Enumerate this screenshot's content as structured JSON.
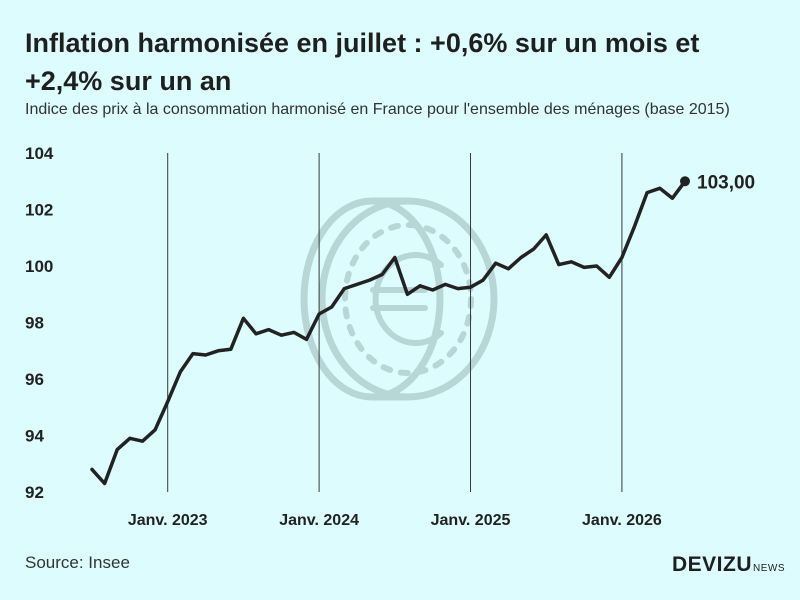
{
  "title": "Inflation harmonisée en juillet : +0,6% sur un mois et +2,4% sur un an",
  "subtitle": "Indice des prix à la consommation harmonisé en France pour l'ensemble des ménages (base 2015)",
  "source": "Source: Insee",
  "brand": {
    "name": "DEVIZU",
    "suffix": "NEWS"
  },
  "colors": {
    "background": "#dcfcfd",
    "line": "#222222",
    "watermark": "#b9d6d7"
  },
  "watermark_icon": "euro-coin-icon",
  "chart_data": {
    "type": "line",
    "title": "Inflation harmonisée en juillet : +0,6% sur un mois et +2,4% sur un an",
    "ylim": [
      92,
      104
    ],
    "yticks": [
      "92",
      "94",
      "96",
      "98",
      "100",
      "102",
      "104"
    ],
    "yticks_values": [
      92,
      94,
      96,
      98,
      100,
      102,
      104
    ],
    "xlim": [
      -3.8,
      45.5
    ],
    "xticks": [
      {
        "label": "Janv. 2023",
        "index": 6
      },
      {
        "label": "Janv. 2024",
        "index": 18
      },
      {
        "label": "Janv. 2025",
        "index": 30
      },
      {
        "label": "Janv. 2026",
        "index": 42
      }
    ],
    "grid": "vertical lines at January",
    "series": [
      {
        "values": [
          92.8,
          92.3,
          93.5,
          93.9,
          93.8,
          94.2,
          95.2,
          96.25,
          96.9,
          96.85,
          97.0,
          97.05,
          98.15,
          97.6,
          97.75,
          97.55,
          97.65,
          97.4,
          98.3,
          98.55,
          99.2,
          99.35,
          99.5,
          99.7,
          100.3,
          99.0,
          99.3,
          99.15,
          99.35,
          99.2,
          99.25,
          99.5,
          100.1,
          99.9,
          100.3,
          100.6,
          101.1,
          100.05,
          100.15,
          99.95,
          100.0,
          99.6,
          100.3,
          101.4,
          102.6,
          102.75,
          102.4,
          103.0
        ],
        "last_label": "103,00"
      }
    ]
  }
}
